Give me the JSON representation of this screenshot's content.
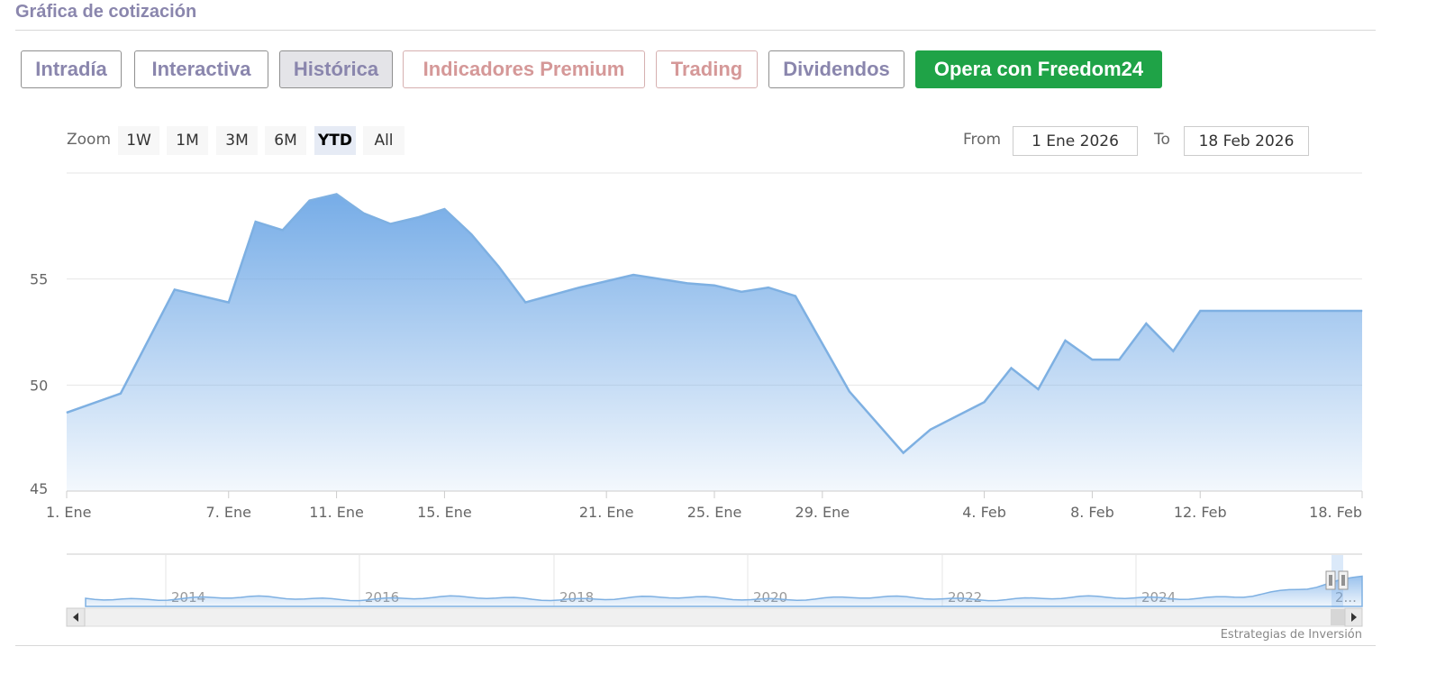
{
  "header": {
    "title": "Gráfica de cotización"
  },
  "tabs": [
    {
      "label": "Intradía"
    },
    {
      "label": "Interactiva"
    },
    {
      "label": "Histórica"
    },
    {
      "label": "Indicadores Premium"
    },
    {
      "label": "Trading"
    },
    {
      "label": "Dividendos"
    },
    {
      "label": "Opera con Freedom24"
    }
  ],
  "zoom": {
    "label": "Zoom",
    "buttons": [
      "1W",
      "1M",
      "3M",
      "6M",
      "YTD",
      "All"
    ],
    "selected": "YTD"
  },
  "range": {
    "from_label": "From",
    "from_value": "1 Ene 2026",
    "to_label": "To",
    "to_value": "18 Feb 2026"
  },
  "colors": {
    "accent": "#8a86ad",
    "premium": "#d59898",
    "cta": "#1fa347",
    "series_line": "#7eb0e2",
    "series_fill": "#6fa8e6"
  },
  "chart_data": {
    "type": "area",
    "title": "",
    "xlabel": "",
    "ylabel": "",
    "x": [
      "2026-01-01",
      "2026-01-03",
      "2026-01-05",
      "2026-01-07",
      "2026-01-08",
      "2026-01-09",
      "2026-01-10",
      "2026-01-11",
      "2026-01-12",
      "2026-01-13",
      "2026-01-14",
      "2026-01-15",
      "2026-01-16",
      "2026-01-17",
      "2026-01-18",
      "2026-01-20",
      "2026-01-22",
      "2026-01-24",
      "2026-01-25",
      "2026-01-26",
      "2026-01-27",
      "2026-01-28",
      "2026-01-30",
      "2026-02-01",
      "2026-02-02",
      "2026-02-04",
      "2026-02-05",
      "2026-02-06",
      "2026-02-07",
      "2026-02-08",
      "2026-02-09",
      "2026-02-10",
      "2026-02-11",
      "2026-02-12",
      "2026-02-13",
      "2026-02-14",
      "2026-02-15",
      "2026-02-16",
      "2026-02-17",
      "2026-02-18"
    ],
    "values": [
      48.7,
      49.6,
      54.5,
      53.9,
      57.7,
      57.3,
      58.7,
      59.0,
      58.1,
      57.6,
      57.9,
      58.3,
      57.1,
      55.6,
      53.9,
      54.6,
      55.2,
      54.8,
      54.7,
      54.4,
      54.6,
      54.2,
      49.7,
      46.8,
      47.9,
      49.2,
      50.8,
      49.8,
      52.1,
      51.2,
      51.2,
      52.9,
      51.6,
      53.5,
      53.5,
      53.5,
      53.5,
      53.5,
      53.5,
      53.5
    ],
    "x_tick_labels": [
      "1. Ene",
      "7. Ene",
      "11. Ene",
      "15. Ene",
      "21. Ene",
      "25. Ene",
      "29. Ene",
      "4. Feb",
      "8. Feb",
      "12. Feb",
      "18. Feb"
    ],
    "y_ticks": [
      45,
      50,
      55
    ],
    "ylim": [
      45,
      60
    ],
    "grid": true,
    "legend": "none",
    "navigator": {
      "year_labels": [
        "2014",
        "2016",
        "2018",
        "2020",
        "2022",
        "2024",
        "2..."
      ]
    }
  },
  "credit": "Estrategias de Inversión"
}
